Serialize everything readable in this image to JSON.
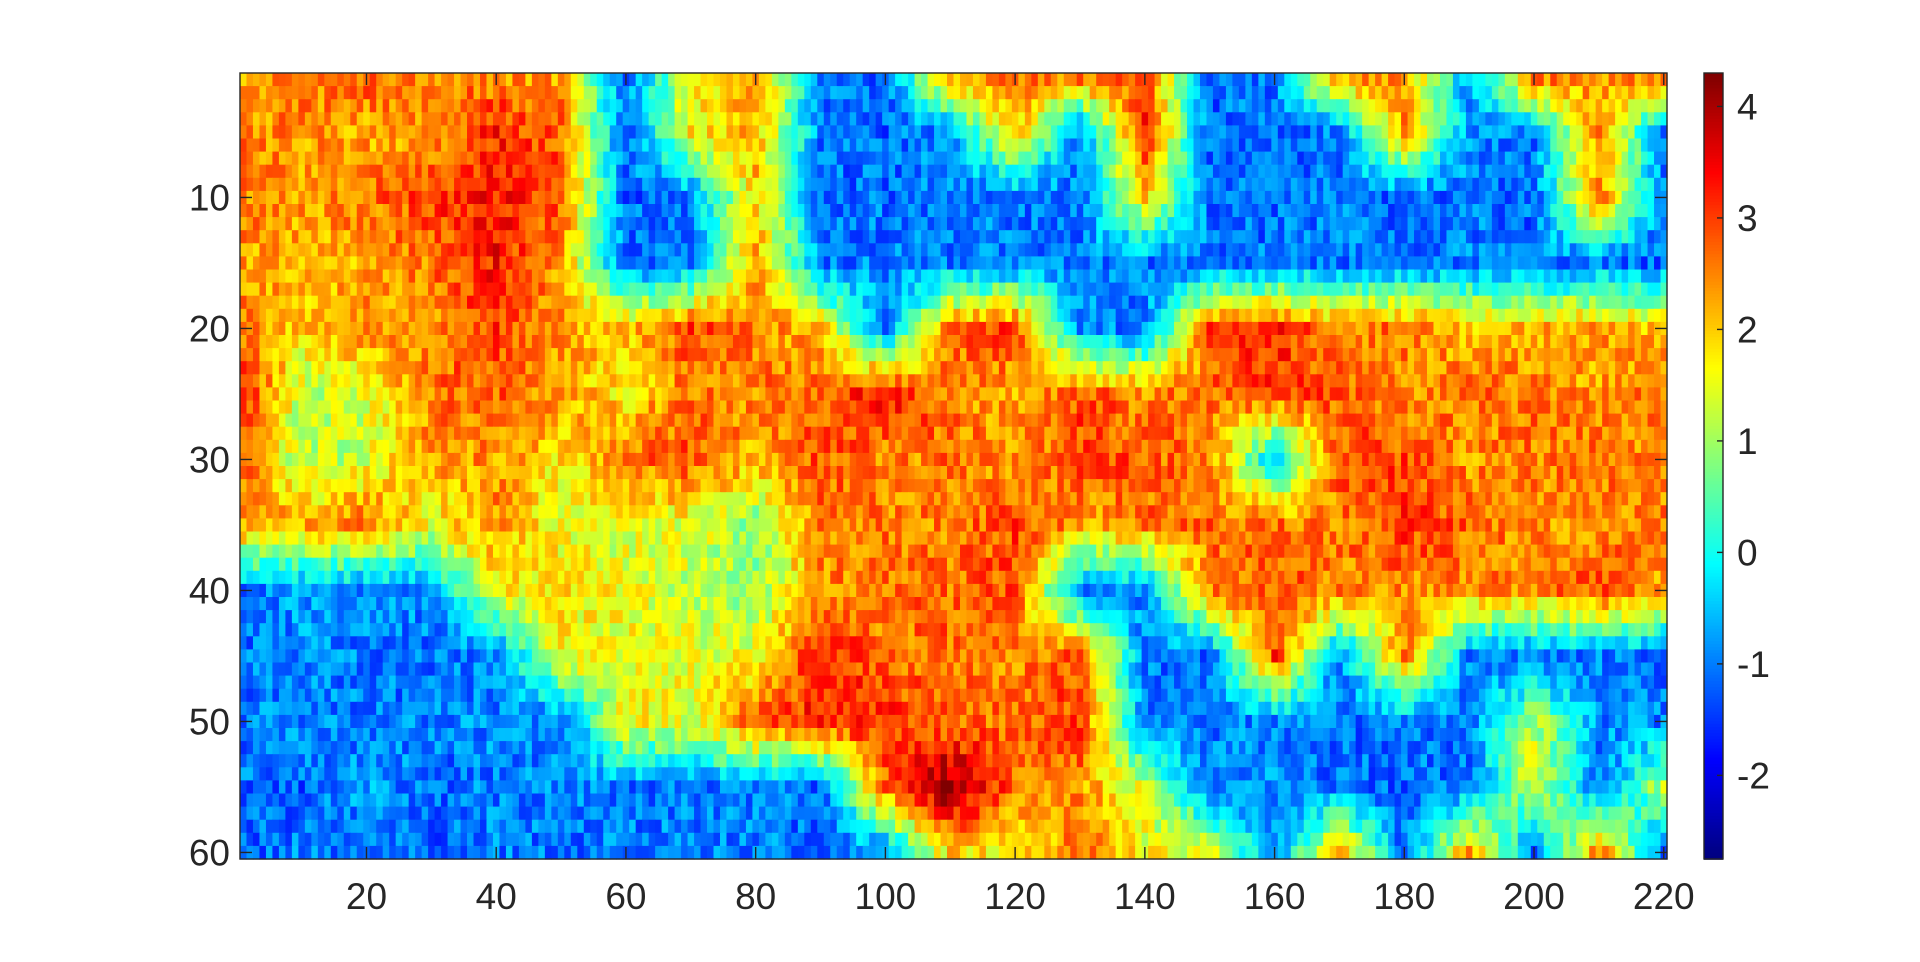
{
  "chart_data": {
    "type": "heatmap",
    "title": "",
    "xlabel": "",
    "ylabel": "",
    "columns": 220,
    "rows": 60,
    "xlim": [
      0.5,
      220.5
    ],
    "ylim": [
      0.5,
      60.5
    ],
    "y_direction": "reverse",
    "x_ticks": [
      20,
      40,
      60,
      80,
      100,
      120,
      140,
      160,
      180,
      200,
      220
    ],
    "y_ticks": [
      10,
      20,
      30,
      40,
      50,
      60
    ],
    "colormap": "jet",
    "colorbar": {
      "location": "right",
      "range": [
        -2.75,
        4.3
      ],
      "ticks": [
        -2,
        -1,
        0,
        1,
        2,
        3,
        4
      ]
    },
    "value_model": {
      "background_value": -1.1,
      "noise_amplitude": 0.55,
      "grid_interpolation": "bilinear",
      "coarse_rows": [
        1,
        5,
        10,
        15,
        20,
        25,
        30,
        35,
        40,
        45,
        50,
        55,
        60
      ],
      "coarse_cols": [
        1,
        10,
        20,
        30,
        40,
        50,
        60,
        70,
        80,
        90,
        100,
        110,
        120,
        130,
        140,
        150,
        160,
        170,
        180,
        190,
        200,
        210,
        220
      ],
      "coarse_values": [
        [
          2.3,
          2.6,
          2.8,
          2.6,
          2.5,
          2.3,
          -1.1,
          1.6,
          2.4,
          -0.9,
          -1.2,
          2.2,
          2.6,
          2.5,
          3.0,
          -1.1,
          -1.0,
          2.3,
          2.4,
          -0.8,
          2.6,
          2.4,
          2.5
        ],
        [
          2.5,
          2.4,
          2.2,
          2.4,
          3.2,
          2.7,
          -1.2,
          1.7,
          2.2,
          -1.0,
          -1.2,
          -0.8,
          2.2,
          -1.0,
          3.2,
          -1.2,
          -1.1,
          -1.0,
          2.4,
          -0.9,
          -1.0,
          2.5,
          -1.1
        ],
        [
          2.5,
          2.4,
          2.6,
          3.0,
          3.3,
          2.9,
          -1.2,
          -1.0,
          2.0,
          -1.1,
          -1.1,
          -1.0,
          -1.1,
          -1.0,
          2.0,
          -1.1,
          -1.1,
          -1.0,
          -1.2,
          -1.0,
          -1.2,
          2.6,
          -1.1
        ],
        [
          2.4,
          2.1,
          2.3,
          2.6,
          3.3,
          2.4,
          -1.1,
          -1.0,
          2.4,
          -1.0,
          -1.0,
          -1.0,
          -1.0,
          -1.0,
          -1.1,
          -1.0,
          -1.1,
          -1.0,
          -1.1,
          -1.0,
          -1.1,
          -1.0,
          -1.2
        ],
        [
          2.5,
          2.0,
          2.4,
          2.5,
          3.0,
          2.3,
          2.0,
          3.0,
          2.6,
          2.0,
          -1.0,
          2.7,
          3.0,
          -0.9,
          -1.0,
          2.9,
          3.2,
          2.5,
          2.7,
          2.1,
          2.2,
          2.3,
          2.0
        ],
        [
          3.2,
          1.2,
          1.4,
          2.6,
          2.8,
          2.3,
          1.8,
          2.6,
          2.5,
          2.8,
          3.4,
          2.6,
          2.2,
          2.9,
          2.5,
          2.6,
          3.0,
          2.8,
          2.4,
          2.6,
          2.6,
          2.3,
          2.6
        ],
        [
          2.8,
          1.0,
          1.4,
          2.3,
          2.4,
          1.8,
          2.6,
          2.9,
          2.2,
          2.9,
          2.4,
          2.7,
          2.3,
          2.9,
          2.8,
          2.5,
          -0.5,
          2.9,
          2.9,
          2.4,
          2.6,
          2.6,
          2.5
        ],
        [
          2.4,
          2.2,
          2.6,
          1.5,
          2.5,
          1.5,
          1.4,
          1.5,
          0.8,
          2.5,
          2.6,
          2.5,
          3.0,
          2.3,
          2.6,
          2.7,
          2.7,
          2.5,
          3.1,
          2.7,
          2.5,
          2.4,
          2.5
        ],
        [
          -1.1,
          -0.8,
          -1.0,
          -0.8,
          1.6,
          1.8,
          1.5,
          1.2,
          0.9,
          2.4,
          2.6,
          2.7,
          2.9,
          -1.0,
          -0.9,
          2.5,
          2.8,
          2.6,
          2.4,
          2.5,
          2.4,
          3.0,
          2.3
        ],
        [
          -1.1,
          -0.9,
          -1.0,
          -1.1,
          -1.0,
          1.7,
          1.6,
          1.5,
          1.5,
          3.3,
          2.6,
          2.7,
          2.4,
          2.8,
          -1.0,
          -1.1,
          3.0,
          -1.0,
          2.6,
          -1.0,
          -1.1,
          -1.0,
          -1.2
        ],
        [
          -1.0,
          -0.9,
          -1.1,
          -1.0,
          -0.9,
          -1.1,
          1.7,
          1.4,
          2.8,
          3.2,
          3.2,
          2.6,
          2.7,
          3.0,
          -1.1,
          -1.0,
          -0.9,
          -1.1,
          -1.0,
          -1.1,
          1.2,
          -0.9,
          -1.0
        ],
        [
          -1.1,
          -1.2,
          -0.8,
          -1.1,
          -1.0,
          -0.9,
          -1.0,
          -1.1,
          -0.9,
          -1.2,
          2.7,
          4.3,
          2.6,
          2.4,
          1.3,
          -1.0,
          -0.9,
          -1.1,
          -1.2,
          -1.0,
          1.5,
          -1.1,
          1.2
        ],
        [
          -1.2,
          -1.0,
          -1.1,
          -1.2,
          -1.0,
          -1.1,
          -1.0,
          -0.9,
          -1.0,
          -1.1,
          -1.0,
          2.0,
          1.6,
          2.6,
          1.6,
          1.4,
          -1.0,
          2.3,
          -1.2,
          2.4,
          -1.1,
          2.6,
          -1.1
        ]
      ]
    }
  }
}
